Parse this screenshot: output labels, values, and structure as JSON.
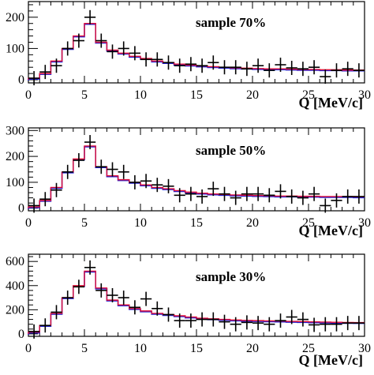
{
  "colors": {
    "data": "#000000",
    "model_a": "#1f1fd0",
    "model_b": "#e0103a",
    "axis": "#000000"
  },
  "chart_data": [
    {
      "type": "line",
      "title": "sample 70%",
      "xlabel": "Q [MeV/c]",
      "ylabel": "",
      "xlim": [
        0,
        30
      ],
      "ylim": [
        -10,
        250
      ],
      "xticks": [
        0,
        5,
        10,
        15,
        20,
        25,
        30
      ],
      "xtick_labels": [
        "0",
        "5",
        "10",
        "15",
        "20",
        "25",
        "30"
      ],
      "yticks": [
        0,
        100,
        200
      ],
      "ytick_labels": [
        "0",
        "100",
        "200"
      ],
      "bin_edges": [
        0,
        1,
        2,
        3,
        4,
        5,
        6,
        7,
        8,
        9,
        10,
        11,
        12,
        13,
        14,
        15,
        16,
        17,
        18,
        19,
        20,
        21,
        22,
        23,
        24,
        25,
        26,
        27,
        28,
        29,
        30
      ],
      "hist_values": [
        5,
        20,
        60,
        100,
        140,
        180,
        120,
        95,
        85,
        75,
        68,
        60,
        55,
        50,
        47,
        44,
        42,
        40,
        38,
        37,
        36,
        35,
        35,
        34,
        33,
        33,
        32,
        32,
        31,
        31
      ],
      "data_points": {
        "x": [
          0.5,
          1.5,
          2.5,
          3.5,
          4.5,
          5.5,
          6.5,
          7.5,
          8.5,
          9.5,
          10.5,
          11.5,
          12.5,
          13.5,
          14.5,
          15.5,
          16.5,
          17.5,
          18.5,
          19.5,
          20.5,
          21.5,
          22.5,
          23.5,
          24.5,
          25.5,
          26.5,
          27.5,
          28.5,
          29.5
        ],
        "y": [
          5,
          25,
          45,
          100,
          125,
          200,
          125,
          90,
          100,
          85,
          65,
          65,
          55,
          45,
          50,
          45,
          55,
          40,
          40,
          35,
          45,
          30,
          48,
          38,
          35,
          40,
          10,
          30,
          35,
          30
        ]
      }
    },
    {
      "type": "line",
      "title": "sample 50%",
      "xlabel": "Q [MeV/c]",
      "ylabel": "",
      "xlim": [
        0,
        30
      ],
      "ylim": [
        -10,
        310
      ],
      "xticks": [
        0,
        5,
        10,
        15,
        20,
        25,
        30
      ],
      "xtick_labels": [
        "0",
        "5",
        "10",
        "15",
        "20",
        "25",
        "30"
      ],
      "yticks": [
        0,
        100,
        200,
        300
      ],
      "ytick_labels": [
        "0",
        "100",
        "200",
        "300"
      ],
      "bin_edges": [
        0,
        1,
        2,
        3,
        4,
        5,
        6,
        7,
        8,
        9,
        10,
        11,
        12,
        13,
        14,
        15,
        16,
        17,
        18,
        19,
        20,
        21,
        22,
        23,
        24,
        25,
        26,
        27,
        28,
        29,
        30
      ],
      "hist_values": [
        5,
        30,
        80,
        140,
        190,
        240,
        160,
        125,
        110,
        100,
        90,
        80,
        75,
        68,
        62,
        58,
        55,
        53,
        51,
        50,
        49,
        48,
        47,
        47,
        46,
        46,
        45,
        45,
        45,
        44
      ],
      "data_points": {
        "x": [
          0.5,
          1.5,
          2.5,
          3.5,
          4.5,
          5.5,
          6.5,
          7.5,
          8.5,
          9.5,
          10.5,
          11.5,
          12.5,
          13.5,
          14.5,
          15.5,
          16.5,
          17.5,
          18.5,
          19.5,
          20.5,
          21.5,
          22.5,
          23.5,
          24.5,
          25.5,
          26.5,
          27.5,
          28.5,
          29.5
        ],
        "y": [
          10,
          35,
          70,
          140,
          185,
          255,
          160,
          150,
          140,
          100,
          105,
          90,
          85,
          50,
          55,
          45,
          75,
          55,
          40,
          55,
          55,
          50,
          65,
          45,
          40,
          55,
          10,
          30,
          45,
          45
        ]
      }
    },
    {
      "type": "line",
      "title": "sample 30%",
      "xlabel": "Q [MeV/c]",
      "ylabel": "",
      "xlim": [
        0,
        30
      ],
      "ylim": [
        -20,
        660
      ],
      "xticks": [
        0,
        5,
        10,
        15,
        20,
        25,
        30
      ],
      "xtick_labels": [
        "0",
        "5",
        "10",
        "15",
        "20",
        "25",
        "30"
      ],
      "yticks": [
        0,
        200,
        400,
        600
      ],
      "ytick_labels": [
        "0",
        "200",
        "400",
        "600"
      ],
      "bin_edges": [
        0,
        1,
        2,
        3,
        4,
        5,
        6,
        7,
        8,
        9,
        10,
        11,
        12,
        13,
        14,
        15,
        16,
        17,
        18,
        19,
        20,
        21,
        22,
        23,
        24,
        25,
        26,
        27,
        28,
        29,
        30
      ],
      "hist_values": [
        15,
        70,
        170,
        300,
        400,
        520,
        380,
        280,
        240,
        210,
        190,
        170,
        160,
        150,
        140,
        130,
        125,
        120,
        115,
        112,
        110,
        108,
        106,
        104,
        102,
        100,
        98,
        96,
        95,
        94
      ],
      "data_points": {
        "x": [
          0.5,
          1.5,
          2.5,
          3.5,
          4.5,
          5.5,
          6.5,
          7.5,
          8.5,
          9.5,
          10.5,
          11.5,
          12.5,
          13.5,
          14.5,
          15.5,
          16.5,
          17.5,
          18.5,
          19.5,
          20.5,
          21.5,
          22.5,
          23.5,
          24.5,
          25.5,
          26.5,
          27.5,
          28.5,
          29.5
        ],
        "y": [
          20,
          70,
          180,
          300,
          390,
          550,
          360,
          320,
          300,
          220,
          290,
          210,
          160,
          110,
          110,
          120,
          120,
          100,
          80,
          95,
          90,
          80,
          110,
          140,
          120,
          75,
          80,
          80,
          90,
          90
        ]
      }
    }
  ]
}
